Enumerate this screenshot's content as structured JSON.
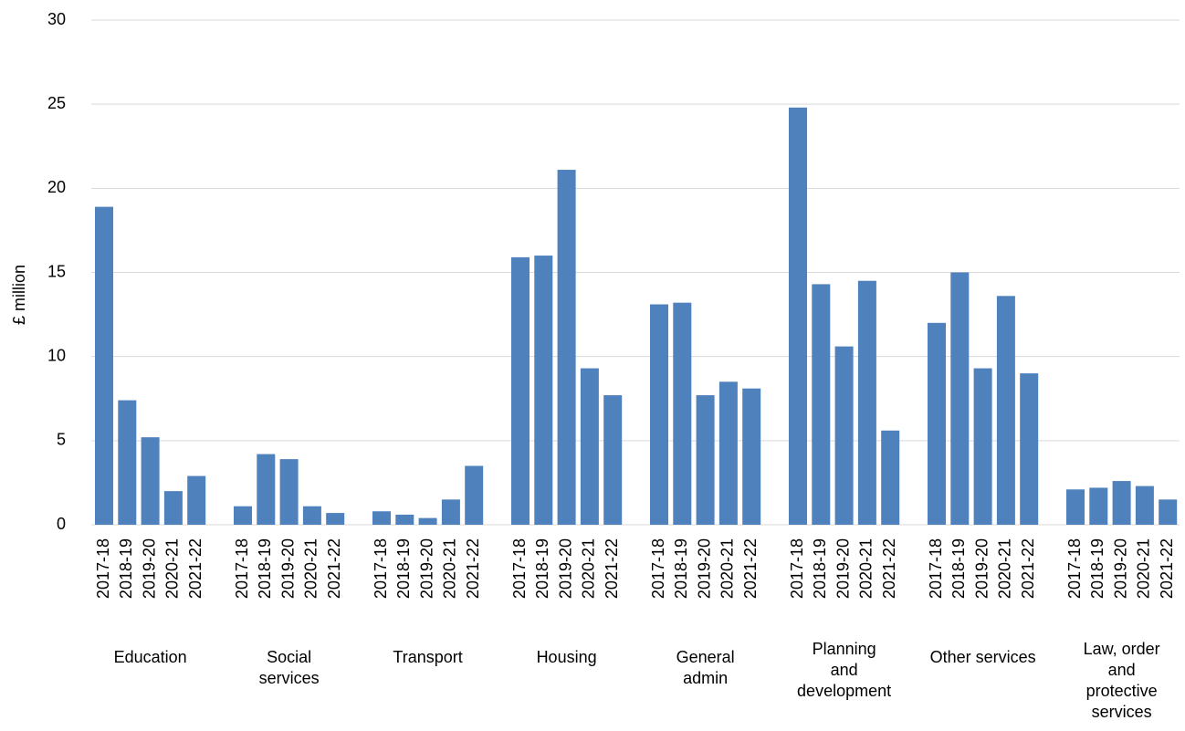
{
  "chart_data": {
    "type": "bar",
    "y_label": "£ million",
    "color": "#4f81bd",
    "ylim": [
      0,
      30
    ],
    "yticks": [
      0,
      5,
      10,
      15,
      20,
      25,
      30
    ],
    "grid": true,
    "groups": [
      {
        "label": [
          "Education"
        ],
        "categories": [
          "2017-18",
          "2018-19",
          "2019-20",
          "2020-21",
          "2021-22"
        ],
        "values": [
          18.9,
          7.4,
          5.2,
          2.0,
          2.9
        ]
      },
      {
        "label": [
          "Social",
          "services"
        ],
        "categories": [
          "2017-18",
          "2018-19",
          "2019-20",
          "2020-21",
          "2021-22"
        ],
        "values": [
          1.1,
          4.2,
          3.9,
          1.1,
          0.7
        ]
      },
      {
        "label": [
          "Transport"
        ],
        "categories": [
          "2017-18",
          "2018-19",
          "2019-20",
          "2020-21",
          "2021-22"
        ],
        "values": [
          0.8,
          0.6,
          0.4,
          1.5,
          3.5
        ]
      },
      {
        "label": [
          "Housing"
        ],
        "categories": [
          "2017-18",
          "2018-19",
          "2019-20",
          "2020-21",
          "2021-22"
        ],
        "values": [
          15.9,
          16.0,
          21.1,
          9.3,
          7.7
        ]
      },
      {
        "label": [
          "General",
          "admin"
        ],
        "categories": [
          "2017-18",
          "2018-19",
          "2019-20",
          "2020-21",
          "2021-22"
        ],
        "values": [
          13.1,
          13.2,
          7.7,
          8.5,
          8.1
        ]
      },
      {
        "label": [
          "Planning",
          "and",
          "development"
        ],
        "categories": [
          "2017-18",
          "2018-19",
          "2019-20",
          "2020-21",
          "2021-22"
        ],
        "values": [
          24.8,
          14.3,
          10.6,
          14.5,
          5.6
        ]
      },
      {
        "label": [
          "Other services"
        ],
        "categories": [
          "2017-18",
          "2018-19",
          "2019-20",
          "2020-21",
          "2021-22"
        ],
        "values": [
          12.0,
          15.0,
          9.3,
          13.6,
          9.0
        ]
      },
      {
        "label": [
          "Law, order",
          "and",
          "protective",
          "services"
        ],
        "categories": [
          "2017-18",
          "2018-19",
          "2019-20",
          "2020-21",
          "2021-22"
        ],
        "values": [
          2.1,
          2.2,
          2.6,
          2.3,
          1.5
        ]
      }
    ]
  }
}
